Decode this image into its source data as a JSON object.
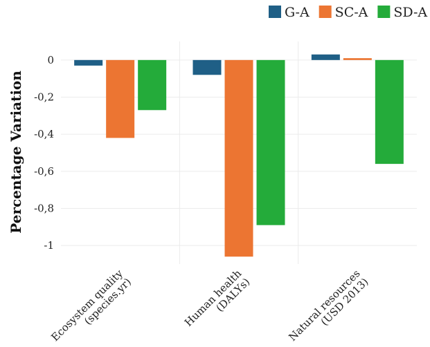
{
  "chart_data": {
    "type": "bar",
    "title": "",
    "xlabel": "",
    "ylabel": "Percentage Variation",
    "categories": [
      [
        "Ecosystem quality",
        "(species.yr)"
      ],
      [
        "Human health",
        "(DALYs)"
      ],
      [
        "Natural resources",
        "(USD 2013)"
      ]
    ],
    "series": [
      {
        "name": "G-A",
        "color": "#1f5f86",
        "values": [
          -0.03,
          -0.08,
          0.03
        ]
      },
      {
        "name": "SC-A",
        "color": "#ec7532",
        "values": [
          -0.42,
          -1.06,
          0.01
        ]
      },
      {
        "name": "SD-A",
        "color": "#24ab3a",
        "values": [
          -0.27,
          -0.89,
          -0.56
        ]
      }
    ],
    "yticks": [
      0,
      -0.2,
      -0.4,
      -0.6,
      -0.8,
      -1
    ],
    "ytick_labels": [
      "0",
      "-0,2",
      "-0,4",
      "-0,6",
      "-0,8",
      "-1"
    ],
    "ylim": [
      -1.1,
      0.1
    ],
    "grid": true,
    "legend_position": "top-right"
  }
}
